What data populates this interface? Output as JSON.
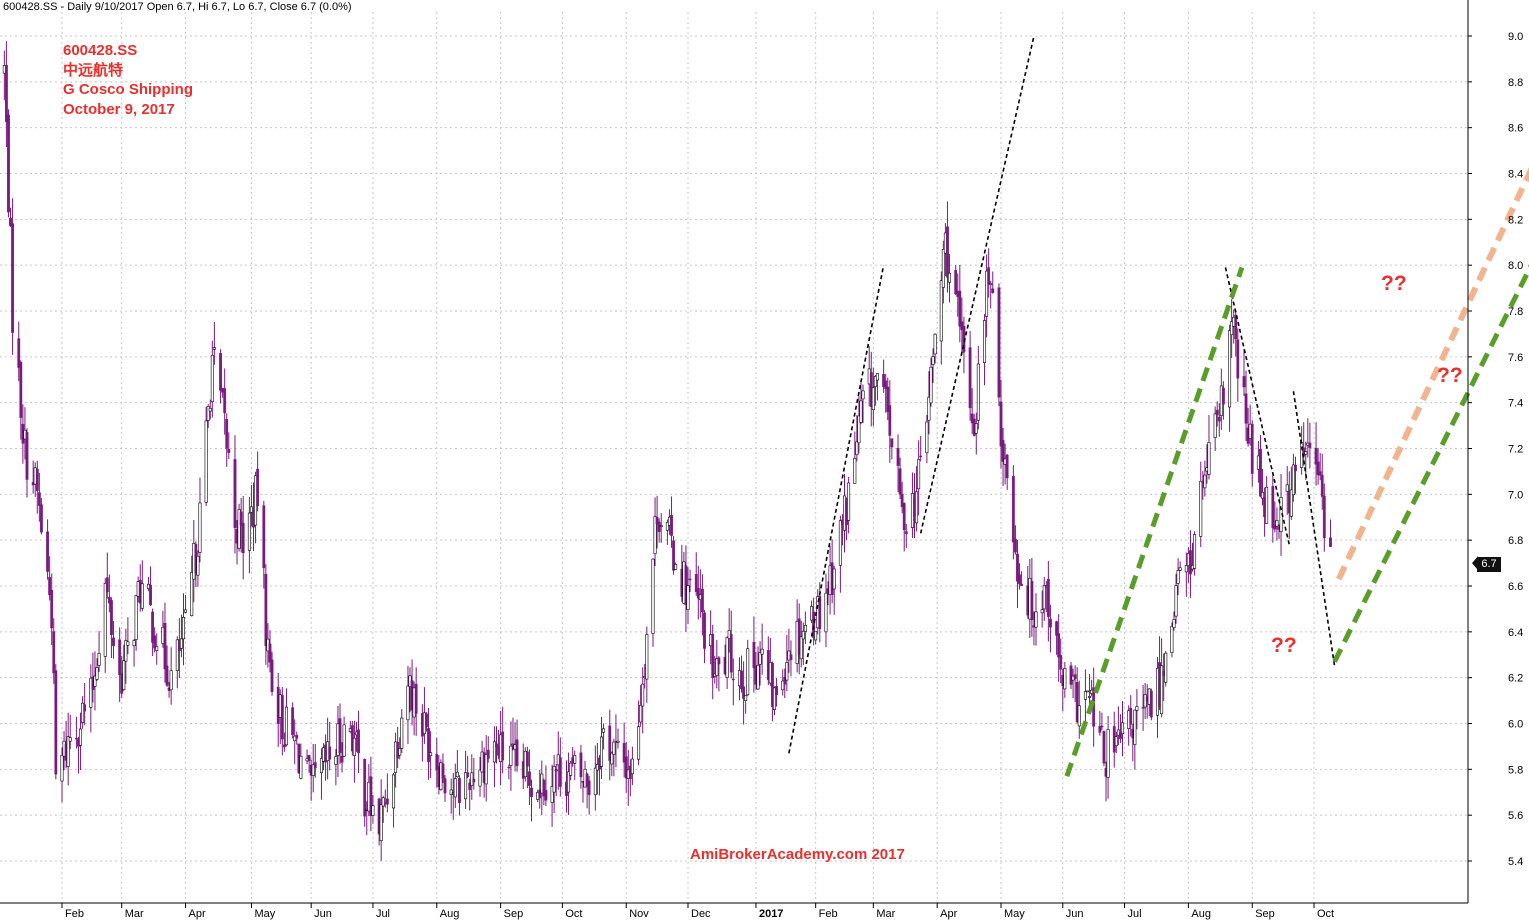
{
  "header": {
    "text": "600428.SS - Daily 9/10/2017 Open 6.7, Hi 6.7, Lo 6.7, Close 6.7 (0.0%)"
  },
  "annotation": {
    "ticker": "600428.SS",
    "name_cn": "中远航特",
    "name_en": "G Cosco Shipping",
    "date": "October 9, 2017"
  },
  "watermark": "AmiBrokerAcademy.com  2017",
  "question_marks": [
    "??",
    "??",
    "??"
  ],
  "last_price_badge": "6.7",
  "colors": {
    "candle": "#7a1a80",
    "background": "#ffffff",
    "grid": "#c8c8c8",
    "annotation_text": "#e8302c",
    "trend_black": "#000000",
    "trend_green": "#5a9e2a",
    "trend_orange": "#f2b48e"
  },
  "chart_data": {
    "type": "candlestick",
    "ylim": [
      5.3,
      9.1
    ],
    "yticks": [
      5.4,
      5.6,
      5.8,
      6.0,
      6.2,
      6.4,
      6.6,
      6.8,
      7.0,
      7.2,
      7.4,
      7.6,
      7.8,
      8.0,
      8.2,
      8.4,
      8.6,
      8.8,
      9.0
    ],
    "ytick_labels": [
      "5.4",
      "5.6",
      "5.8",
      "6.0",
      "6.2",
      "6.4",
      "6.6",
      "6.8",
      "7.0",
      "7.2",
      "7.4",
      "7.6",
      "7.8",
      "8.0",
      "8.2",
      "8.4",
      "8.6",
      "8.8",
      "9.0"
    ],
    "x_range": [
      "2016-01-01",
      "2017-10-20"
    ],
    "x_ticks": [
      {
        "label": "Feb",
        "date": "2016-02-01"
      },
      {
        "label": "Mar",
        "date": "2016-03-01"
      },
      {
        "label": "Apr",
        "date": "2016-04-01"
      },
      {
        "label": "May",
        "date": "2016-05-03"
      },
      {
        "label": "Jun",
        "date": "2016-06-01"
      },
      {
        "label": "Jul",
        "date": "2016-07-01"
      },
      {
        "label": "Aug",
        "date": "2016-08-01"
      },
      {
        "label": "Sep",
        "date": "2016-09-01"
      },
      {
        "label": "Oct",
        "date": "2016-10-01"
      },
      {
        "label": "Nov",
        "date": "2016-11-01"
      },
      {
        "label": "Dec",
        "date": "2016-12-01"
      },
      {
        "label": "2017",
        "date": "2017-01-03",
        "bold": true
      },
      {
        "label": "Feb",
        "date": "2017-02-01"
      },
      {
        "label": "Mar",
        "date": "2017-03-01"
      },
      {
        "label": "Apr",
        "date": "2017-04-01"
      },
      {
        "label": "May",
        "date": "2017-05-02"
      },
      {
        "label": "Jun",
        "date": "2017-06-01"
      },
      {
        "label": "Jul",
        "date": "2017-07-01"
      },
      {
        "label": "Aug",
        "date": "2017-08-01"
      },
      {
        "label": "Sep",
        "date": "2017-09-01"
      },
      {
        "label": "Oct",
        "date": "2017-10-01"
      }
    ],
    "price_path": [
      [
        "2016-01-04",
        8.85
      ],
      [
        "2016-01-08",
        7.8
      ],
      [
        "2016-01-14",
        7.2
      ],
      [
        "2016-01-20",
        7.0
      ],
      [
        "2016-01-27",
        6.5
      ],
      [
        "2016-01-29",
        5.75
      ],
      [
        "2016-02-05",
        5.95
      ],
      [
        "2016-02-15",
        6.1
      ],
      [
        "2016-02-22",
        6.6
      ],
      [
        "2016-02-29",
        6.2
      ],
      [
        "2016-03-04",
        6.3
      ],
      [
        "2016-03-10",
        6.6
      ],
      [
        "2016-03-18",
        6.4
      ],
      [
        "2016-03-25",
        6.2
      ],
      [
        "2016-04-01",
        6.4
      ],
      [
        "2016-04-08",
        6.9
      ],
      [
        "2016-04-14",
        7.6
      ],
      [
        "2016-04-20",
        7.3
      ],
      [
        "2016-04-25",
        6.9
      ],
      [
        "2016-04-29",
        6.8
      ],
      [
        "2016-05-06",
        7.0
      ],
      [
        "2016-05-11",
        6.3
      ],
      [
        "2016-05-18",
        6.0
      ],
      [
        "2016-05-25",
        5.9
      ],
      [
        "2016-06-01",
        5.7
      ],
      [
        "2016-06-10",
        5.85
      ],
      [
        "2016-06-20",
        6.0
      ],
      [
        "2016-06-27",
        5.7
      ],
      [
        "2016-07-04",
        5.55
      ],
      [
        "2016-07-08",
        5.7
      ],
      [
        "2016-07-13",
        5.95
      ],
      [
        "2016-07-18",
        6.2
      ],
      [
        "2016-07-25",
        6.0
      ],
      [
        "2016-08-01",
        5.85
      ],
      [
        "2016-08-10",
        5.7
      ],
      [
        "2016-08-19",
        5.8
      ],
      [
        "2016-08-29",
        5.9
      ],
      [
        "2016-09-09",
        5.8
      ],
      [
        "2016-09-20",
        5.75
      ],
      [
        "2016-09-30",
        5.8
      ],
      [
        "2016-10-14",
        5.75
      ],
      [
        "2016-10-21",
        5.95
      ],
      [
        "2016-10-28",
        5.85
      ],
      [
        "2016-11-04",
        5.8
      ],
      [
        "2016-11-10",
        6.3
      ],
      [
        "2016-11-16",
        6.95
      ],
      [
        "2016-11-22",
        6.8
      ],
      [
        "2016-11-30",
        6.6
      ],
      [
        "2016-12-07",
        6.5
      ],
      [
        "2016-12-14",
        6.2
      ],
      [
        "2016-12-21",
        6.3
      ],
      [
        "2016-12-28",
        6.2
      ],
      [
        "2017-01-05",
        6.3
      ],
      [
        "2017-01-12",
        6.1
      ],
      [
        "2017-01-19",
        6.35
      ],
      [
        "2017-02-03",
        6.5
      ],
      [
        "2017-02-10",
        6.7
      ],
      [
        "2017-02-17",
        7.0
      ],
      [
        "2017-02-24",
        7.4
      ],
      [
        "2017-03-03",
        7.5
      ],
      [
        "2017-03-09",
        7.3
      ],
      [
        "2017-03-15",
        6.9
      ],
      [
        "2017-03-22",
        7.0
      ],
      [
        "2017-03-29",
        7.5
      ],
      [
        "2017-04-05",
        8.1
      ],
      [
        "2017-04-12",
        7.7
      ],
      [
        "2017-04-19",
        7.3
      ],
      [
        "2017-04-26",
        8.0
      ],
      [
        "2017-05-03",
        7.2
      ],
      [
        "2017-05-10",
        6.7
      ],
      [
        "2017-05-17",
        6.5
      ],
      [
        "2017-05-24",
        6.6
      ],
      [
        "2017-05-31",
        6.2
      ],
      [
        "2017-06-07",
        6.1
      ],
      [
        "2017-06-14",
        6.1
      ],
      [
        "2017-06-21",
        5.85
      ],
      [
        "2017-06-28",
        5.9
      ],
      [
        "2017-07-05",
        6.0
      ],
      [
        "2017-07-12",
        6.05
      ],
      [
        "2017-07-19",
        6.2
      ],
      [
        "2017-07-26",
        6.6
      ],
      [
        "2017-08-02",
        6.7
      ],
      [
        "2017-08-09",
        7.1
      ],
      [
        "2017-08-16",
        7.3
      ],
      [
        "2017-08-22",
        7.75
      ],
      [
        "2017-08-29",
        7.3
      ],
      [
        "2017-09-05",
        7.05
      ],
      [
        "2017-09-12",
        6.9
      ],
      [
        "2017-09-19",
        7.0
      ],
      [
        "2017-09-26",
        7.2
      ],
      [
        "2017-10-03",
        7.1
      ],
      [
        "2017-10-09",
        6.7
      ]
    ],
    "trendlines": [
      {
        "color": "black",
        "style": "dotted",
        "from": [
          "2017-01-19",
          5.87
        ],
        "to": [
          "2017-03-06",
          8.0
        ]
      },
      {
        "color": "black",
        "style": "dotted",
        "from": [
          "2017-03-24",
          6.83
        ],
        "to": [
          "2017-05-18",
          9.0
        ]
      },
      {
        "color": "black",
        "style": "dotted",
        "from": [
          "2017-08-19",
          7.99
        ],
        "to": [
          "2017-09-19",
          6.78
        ]
      },
      {
        "color": "black",
        "style": "dotted",
        "from": [
          "2017-09-21",
          7.45
        ],
        "to": [
          "2017-10-11",
          6.25
        ]
      },
      {
        "color": "green",
        "style": "dashed",
        "from": [
          "2017-06-03",
          5.77
        ],
        "to": [
          "2017-08-27",
          7.99
        ]
      },
      {
        "color": "green",
        "style": "dashed",
        "from": [
          "2017-10-11",
          6.27
        ],
        "to": [
          "2018-02-10",
          8.48
        ]
      },
      {
        "color": "orange",
        "style": "dashed",
        "from": [
          "2017-10-13",
          6.63
        ],
        "to": [
          "2018-02-05",
          8.83
        ]
      }
    ],
    "last_close": 6.7
  }
}
